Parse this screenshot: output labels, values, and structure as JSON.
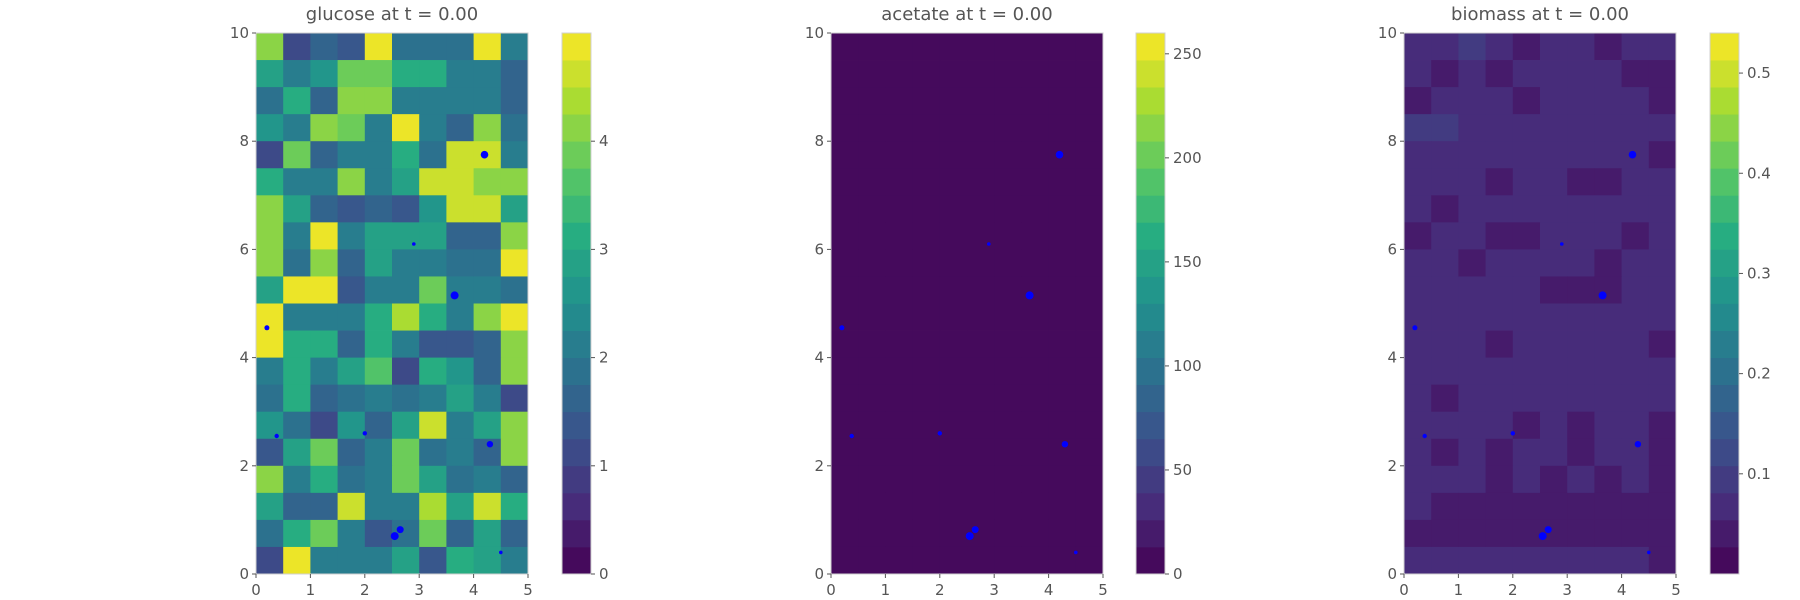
{
  "chart_data": [
    {
      "type": "heatmap",
      "title": "glucose at t = 0.00",
      "x_ticks": [
        "0",
        "1",
        "2",
        "3",
        "4",
        "5"
      ],
      "y_ticks": [
        "0",
        "2",
        "4",
        "6",
        "8",
        "10"
      ],
      "xlim": [
        0,
        5
      ],
      "ylim": [
        0,
        10
      ],
      "grid_shape": [
        10,
        20
      ],
      "colormap": "viridis",
      "colorbar_range": [
        0,
        5.0
      ],
      "colorbar_levels": 20,
      "colorbar_ticks": [
        "0",
        "1",
        "2",
        "3",
        "4"
      ],
      "values": [
        [
          4.2,
          1.2,
          1.5,
          1.4,
          4.9,
          1.8,
          1.8,
          1.8,
          4.9,
          2.2
        ],
        [
          2.8,
          2.2,
          2.6,
          3.8,
          3.8,
          3.2,
          3.2,
          2.2,
          2.2,
          1.5
        ],
        [
          1.8,
          3.2,
          1.5,
          4.0,
          4.0,
          2.2,
          2.0,
          2.2,
          2.2,
          1.5
        ],
        [
          2.6,
          2.2,
          4.0,
          3.8,
          2.2,
          4.9,
          2.2,
          1.5,
          4.2,
          1.8
        ],
        [
          1.2,
          3.8,
          1.7,
          2.2,
          2.2,
          3.2,
          1.8,
          4.7,
          4.7,
          2.2
        ],
        [
          3.2,
          2.2,
          2.2,
          4.0,
          2.2,
          2.8,
          4.6,
          4.6,
          4.2,
          4.0
        ],
        [
          4.2,
          2.8,
          1.7,
          1.4,
          1.7,
          1.4,
          2.6,
          4.6,
          4.7,
          2.8
        ],
        [
          4.2,
          2.2,
          4.9,
          2.2,
          2.8,
          2.8,
          2.8,
          1.5,
          1.5,
          4.0
        ],
        [
          4.2,
          1.8,
          4.0,
          1.7,
          2.8,
          2.2,
          2.2,
          1.8,
          1.8,
          4.9
        ],
        [
          2.8,
          4.9,
          4.9,
          1.4,
          2.2,
          2.2,
          3.8,
          2.2,
          2.2,
          1.8
        ],
        [
          4.9,
          2.2,
          2.2,
          2.2,
          3.2,
          4.4,
          3.2,
          2.2,
          4.0,
          4.9
        ],
        [
          4.9,
          3.2,
          3.2,
          1.7,
          3.2,
          2.2,
          1.4,
          1.4,
          1.7,
          4.0
        ],
        [
          2.2,
          3.2,
          2.2,
          2.8,
          3.5,
          1.2,
          3.2,
          2.6,
          1.7,
          4.0
        ],
        [
          1.8,
          3.2,
          1.5,
          1.8,
          2.2,
          1.8,
          2.2,
          2.8,
          2.2,
          1.2
        ],
        [
          2.6,
          1.8,
          1.2,
          2.6,
          1.7,
          2.8,
          4.6,
          2.2,
          2.8,
          4.0
        ],
        [
          1.4,
          2.8,
          3.8,
          1.7,
          2.2,
          3.8,
          1.8,
          2.2,
          1.7,
          4.0
        ],
        [
          4.2,
          2.2,
          3.2,
          1.8,
          2.2,
          3.8,
          2.8,
          1.8,
          2.2,
          1.5
        ],
        [
          2.8,
          1.7,
          1.7,
          4.7,
          2.2,
          2.2,
          4.4,
          2.8,
          4.6,
          3.2
        ],
        [
          1.8,
          3.2,
          3.8,
          2.2,
          1.4,
          1.8,
          3.8,
          1.7,
          2.8,
          1.5
        ],
        [
          1.2,
          4.9,
          2.2,
          2.2,
          2.2,
          2.8,
          1.4,
          3.2,
          2.8,
          2.2
        ]
      ],
      "points": [
        {
          "x": 0.2,
          "y": 4.55,
          "s": 2.5
        },
        {
          "x": 0.38,
          "y": 2.55,
          "s": 2.2
        },
        {
          "x": 2.0,
          "y": 2.6,
          "s": 2.2
        },
        {
          "x": 2.55,
          "y": 0.7,
          "s": 4.0
        },
        {
          "x": 2.65,
          "y": 0.82,
          "s": 3.5
        },
        {
          "x": 2.9,
          "y": 6.1,
          "s": 1.8
        },
        {
          "x": 3.65,
          "y": 5.15,
          "s": 4.0
        },
        {
          "x": 4.2,
          "y": 7.75,
          "s": 3.8
        },
        {
          "x": 4.3,
          "y": 2.4,
          "s": 3.2
        },
        {
          "x": 4.5,
          "y": 0.4,
          "s": 1.8
        }
      ]
    },
    {
      "type": "heatmap",
      "title": "acetate at t = 0.00",
      "x_ticks": [
        "0",
        "1",
        "2",
        "3",
        "4",
        "5"
      ],
      "y_ticks": [
        "0",
        "2",
        "4",
        "6",
        "8",
        "10"
      ],
      "xlim": [
        0,
        5
      ],
      "ylim": [
        0,
        10
      ],
      "grid_shape": [
        10,
        20
      ],
      "colormap": "viridis",
      "colorbar_range": [
        0,
        260
      ],
      "colorbar_levels": 20,
      "colorbar_ticks": [
        "0",
        "50",
        "100",
        "150",
        "200",
        "250"
      ],
      "fill_value": 0,
      "points": [
        {
          "x": 0.2,
          "y": 4.55,
          "s": 2.5
        },
        {
          "x": 0.38,
          "y": 2.55,
          "s": 2.2
        },
        {
          "x": 2.0,
          "y": 2.6,
          "s": 2.2
        },
        {
          "x": 2.55,
          "y": 0.7,
          "s": 4.0
        },
        {
          "x": 2.65,
          "y": 0.82,
          "s": 3.5
        },
        {
          "x": 2.9,
          "y": 6.1,
          "s": 1.8
        },
        {
          "x": 3.65,
          "y": 5.15,
          "s": 4.0
        },
        {
          "x": 4.2,
          "y": 7.75,
          "s": 3.8
        },
        {
          "x": 4.3,
          "y": 2.4,
          "s": 3.2
        },
        {
          "x": 4.5,
          "y": 0.4,
          "s": 1.8
        }
      ]
    },
    {
      "type": "heatmap",
      "title": "biomass at t = 0.00",
      "x_ticks": [
        "0",
        "1",
        "2",
        "3",
        "4",
        "5"
      ],
      "y_ticks": [
        "0",
        "2",
        "4",
        "6",
        "8",
        "10"
      ],
      "xlim": [
        0,
        5
      ],
      "ylim": [
        0,
        10
      ],
      "grid_shape": [
        10,
        20
      ],
      "colormap": "viridis",
      "colorbar_range": [
        0.0,
        0.54
      ],
      "colorbar_levels": 20,
      "colorbar_ticks": [
        "0.1",
        "0.2",
        "0.3",
        "0.4",
        "0.5"
      ],
      "colorbar_tick_values": [
        0.1,
        0.2,
        0.3,
        0.4,
        0.5
      ],
      "values": [
        [
          0.06,
          0.08,
          0.1,
          0.06,
          0.05,
          0.07,
          0.08,
          0.05,
          0.06,
          0.08
        ],
        [
          0.07,
          0.05,
          0.08,
          0.05,
          0.06,
          0.08,
          0.06,
          0.07,
          0.05,
          0.03
        ],
        [
          0.03,
          0.07,
          0.06,
          0.07,
          0.03,
          0.08,
          0.06,
          0.07,
          0.06,
          0.05
        ],
        [
          0.09,
          0.09,
          0.07,
          0.06,
          0.07,
          0.07,
          0.07,
          0.07,
          0.07,
          0.07
        ],
        [
          0.08,
          0.08,
          0.07,
          0.08,
          0.08,
          0.07,
          0.08,
          0.06,
          0.07,
          0.03
        ],
        [
          0.06,
          0.06,
          0.07,
          0.05,
          0.06,
          0.06,
          0.03,
          0.03,
          0.07,
          0.06
        ],
        [
          0.06,
          0.04,
          0.06,
          0.08,
          0.06,
          0.07,
          0.07,
          0.06,
          0.06,
          0.06
        ],
        [
          0.04,
          0.08,
          0.08,
          0.05,
          0.05,
          0.07,
          0.06,
          0.07,
          0.03,
          0.07
        ],
        [
          0.06,
          0.06,
          0.03,
          0.07,
          0.07,
          0.06,
          0.06,
          0.03,
          0.06,
          0.07
        ],
        [
          0.07,
          0.06,
          0.06,
          0.06,
          0.08,
          0.03,
          0.03,
          0.05,
          0.06,
          0.07
        ],
        [
          0.06,
          0.06,
          0.06,
          0.06,
          0.07,
          0.07,
          0.06,
          0.07,
          0.06,
          0.06
        ],
        [
          0.07,
          0.06,
          0.06,
          0.04,
          0.07,
          0.06,
          0.06,
          0.07,
          0.08,
          0.03
        ],
        [
          0.06,
          0.08,
          0.08,
          0.06,
          0.07,
          0.06,
          0.06,
          0.07,
          0.07,
          0.06
        ],
        [
          0.08,
          0.03,
          0.07,
          0.06,
          0.07,
          0.06,
          0.08,
          0.07,
          0.06,
          0.07
        ],
        [
          0.06,
          0.06,
          0.06,
          0.06,
          0.05,
          0.06,
          0.05,
          0.06,
          0.06,
          0.04
        ],
        [
          0.07,
          0.05,
          0.06,
          0.04,
          0.06,
          0.07,
          0.05,
          0.06,
          0.06,
          0.05
        ],
        [
          0.06,
          0.07,
          0.07,
          0.04,
          0.06,
          0.04,
          0.06,
          0.05,
          0.08,
          0.04
        ],
        [
          0.06,
          0.05,
          0.04,
          0.04,
          0.04,
          0.05,
          0.04,
          0.05,
          0.05,
          0.04
        ],
        [
          0.05,
          0.05,
          0.05,
          0.05,
          0.05,
          0.05,
          0.04,
          0.04,
          0.05,
          0.05
        ],
        [
          0.07,
          0.06,
          0.07,
          0.06,
          0.07,
          0.06,
          0.07,
          0.06,
          0.06,
          0.05
        ]
      ],
      "points": [
        {
          "x": 0.2,
          "y": 4.55,
          "s": 2.5
        },
        {
          "x": 0.38,
          "y": 2.55,
          "s": 2.2
        },
        {
          "x": 2.0,
          "y": 2.6,
          "s": 2.2
        },
        {
          "x": 2.55,
          "y": 0.7,
          "s": 4.0
        },
        {
          "x": 2.65,
          "y": 0.82,
          "s": 3.5
        },
        {
          "x": 2.9,
          "y": 6.1,
          "s": 1.8
        },
        {
          "x": 3.65,
          "y": 5.15,
          "s": 4.0
        },
        {
          "x": 4.2,
          "y": 7.75,
          "s": 3.8
        },
        {
          "x": 4.3,
          "y": 2.4,
          "s": 3.2
        },
        {
          "x": 4.5,
          "y": 0.4,
          "s": 1.8
        }
      ]
    }
  ],
  "colors": {
    "point": "#0000ff",
    "text": "#555555",
    "frame": "#d0d0d0"
  }
}
